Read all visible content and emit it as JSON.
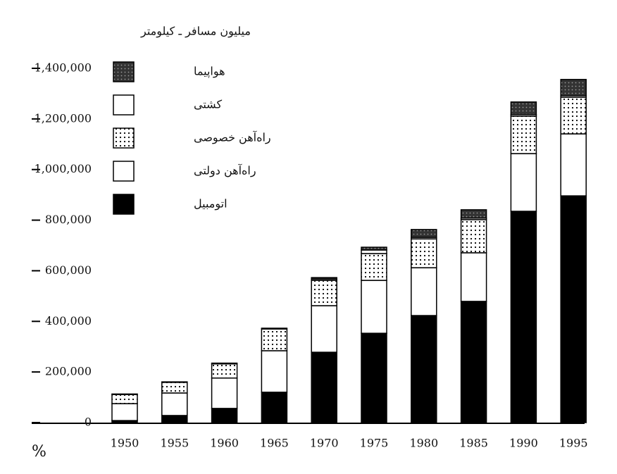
{
  "chart_data": {
    "type": "stacked_bar",
    "y_label": "میلیون مسافر ـ کیلومتر",
    "unit_label": "%",
    "categories": [
      "1950",
      "1955",
      "1960",
      "1965",
      "1970",
      "1975",
      "1980",
      "1985",
      "1990",
      "1995"
    ],
    "series": [
      {
        "name": "اتومبیل",
        "color": "#000000",
        "pattern": "solid",
        "values": [
          8000,
          28000,
          56000,
          120000,
          278000,
          353000,
          423000,
          479000,
          835000,
          896000
        ]
      },
      {
        "name": "راه‌آهن دولتی",
        "color": "#ffffff",
        "pattern": "solid",
        "values": [
          67000,
          89000,
          120000,
          164000,
          184000,
          209000,
          189000,
          192000,
          228000,
          245000
        ]
      },
      {
        "name": "راه‌آهن خصوصی",
        "color": "#ffffff",
        "pattern": "dots",
        "values": [
          36000,
          42000,
          56000,
          86000,
          100000,
          106000,
          114000,
          131000,
          148000,
          145000
        ]
      },
      {
        "name": "کشتی",
        "color": "#ffffff",
        "pattern": "solid",
        "values": [
          0,
          0,
          0,
          0,
          5000,
          14000,
          6000,
          6000,
          6000,
          6000
        ]
      },
      {
        "name": "هواپیما",
        "color": "#333333",
        "pattern": "dots",
        "values": [
          2000,
          2000,
          3000,
          3000,
          6000,
          11000,
          31000,
          33000,
          50000,
          64000
        ]
      }
    ],
    "ylim": [
      0,
      1400000
    ],
    "yticks": [
      {
        "value": 0,
        "label": "0"
      },
      {
        "value": 200000,
        "label": "200,000"
      },
      {
        "value": 400000,
        "label": "400,000"
      },
      {
        "value": 600000,
        "label": "600,000"
      },
      {
        "value": 800000,
        "label": "800,000"
      },
      {
        "value": 1000000,
        "label": "1,000,000"
      },
      {
        "value": 1200000,
        "label": "1,200,000"
      },
      {
        "value": 1400000,
        "label": "1,400,000"
      }
    ]
  }
}
